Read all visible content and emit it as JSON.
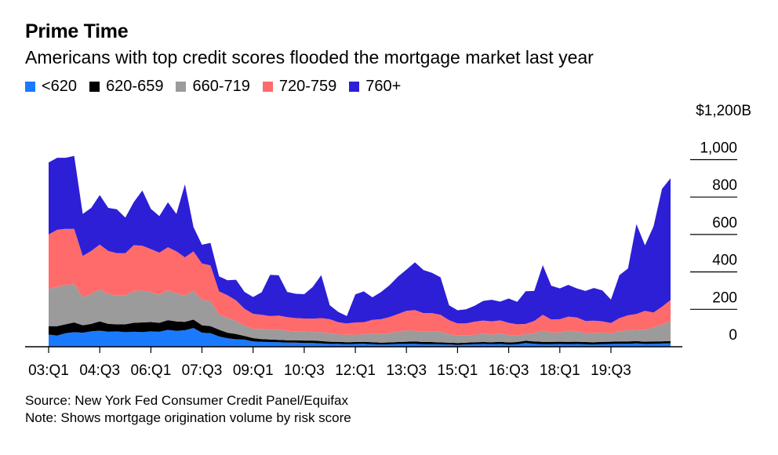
{
  "title": "Prime Time",
  "subtitle": "Americans with top credit scores flooded the mortgage market last year",
  "source": "Source: New York Fed Consumer Credit Panel/Equifax",
  "note": "Note: Shows mortgage origination volume by risk score",
  "colors": {
    "lt620": "#1a7aff",
    "620_659": "#000000",
    "660_719": "#9b9b9b",
    "720_759": "#ff6b6b",
    "760plus": "#2c1fd6"
  },
  "chart_data": {
    "type": "area",
    "stacked": true,
    "ylabel_top": "$1,200B",
    "ylim": [
      0,
      1200
    ],
    "y_ticks": [
      0,
      200,
      400,
      600,
      800,
      1000,
      1200
    ],
    "y_tick_labels": [
      "0",
      "200",
      "400",
      "600",
      "800",
      "1,000",
      "$1,200B"
    ],
    "x_tick_labels": [
      "03:Q1",
      "04:Q3",
      "06:Q1",
      "07:Q3",
      "09:Q1",
      "10:Q3",
      "12:Q1",
      "13:Q3",
      "15:Q1",
      "16:Q3",
      "18:Q1",
      "19:Q3"
    ],
    "x_tick_index": [
      0,
      6,
      12,
      18,
      24,
      30,
      36,
      42,
      48,
      54,
      60,
      66
    ],
    "legend_position": "top-left",
    "series": [
      {
        "name": "<620",
        "color": "#1a7aff",
        "values": [
          65,
          60,
          72,
          78,
          75,
          82,
          86,
          80,
          82,
          78,
          80,
          78,
          82,
          80,
          90,
          85,
          88,
          100,
          75,
          72,
          55,
          45,
          40,
          38,
          28,
          26,
          25,
          24,
          22,
          22,
          20,
          20,
          18,
          15,
          16,
          14,
          15,
          16,
          14,
          12,
          13,
          15,
          15,
          16,
          14,
          14,
          13,
          12,
          10,
          12,
          14,
          15,
          14,
          15,
          12,
          14,
          20,
          16,
          14,
          14,
          15,
          14,
          15,
          13,
          12,
          14,
          15,
          16,
          16,
          18,
          15,
          16,
          17,
          18
        ]
      },
      {
        "name": "620-659",
        "color": "#000000",
        "values": [
          45,
          50,
          48,
          52,
          40,
          40,
          50,
          42,
          38,
          42,
          48,
          52,
          50,
          48,
          52,
          50,
          45,
          45,
          40,
          38,
          36,
          30,
          28,
          20,
          18,
          15,
          14,
          13,
          13,
          13,
          13,
          13,
          12,
          12,
          10,
          10,
          10,
          10,
          10,
          10,
          10,
          10,
          12,
          12,
          11,
          11,
          10,
          10,
          10,
          10,
          10,
          10,
          10,
          11,
          11,
          11,
          12,
          12,
          12,
          12,
          12,
          12,
          12,
          12,
          12,
          12,
          12,
          12,
          12,
          12,
          12,
          12,
          12,
          12
        ]
      },
      {
        "name": "660-719",
        "color": "#9b9b9b",
        "values": [
          200,
          210,
          210,
          205,
          150,
          160,
          170,
          160,
          155,
          155,
          170,
          170,
          160,
          150,
          160,
          150,
          140,
          155,
          135,
          135,
          80,
          80,
          70,
          55,
          50,
          55,
          50,
          55,
          50,
          48,
          48,
          45,
          48,
          45,
          40,
          40,
          40,
          40,
          45,
          45,
          50,
          55,
          60,
          58,
          55,
          55,
          58,
          45,
          40,
          38,
          40,
          45,
          40,
          45,
          40,
          35,
          35,
          45,
          60,
          50,
          50,
          60,
          55,
          48,
          50,
          50,
          45,
          55,
          60,
          60,
          65,
          75,
          90,
          105
        ]
      },
      {
        "name": "720-759",
        "color": "#ff6b6b",
        "values": [
          290,
          305,
          300,
          295,
          220,
          230,
          240,
          230,
          225,
          225,
          245,
          240,
          230,
          225,
          230,
          225,
          205,
          210,
          195,
          190,
          125,
          120,
          110,
          90,
          80,
          75,
          75,
          75,
          73,
          70,
          70,
          72,
          75,
          75,
          65,
          60,
          65,
          65,
          75,
          80,
          85,
          95,
          105,
          110,
          100,
          100,
          90,
          75,
          65,
          65,
          70,
          70,
          72,
          70,
          65,
          60,
          55,
          65,
          85,
          70,
          70,
          75,
          75,
          65,
          65,
          60,
          55,
          70,
          80,
          85,
          100,
          80,
          95,
          115
        ]
      },
      {
        "name": "760+",
        "color": "#2c1fd6",
        "values": [
          385,
          385,
          380,
          390,
          225,
          230,
          265,
          230,
          235,
          190,
          230,
          295,
          215,
          195,
          240,
          200,
          390,
          130,
          100,
          120,
          80,
          80,
          110,
          90,
          90,
          120,
          220,
          215,
          135,
          130,
          130,
          170,
          230,
          75,
          55,
          40,
          150,
          165,
          120,
          145,
          170,
          200,
          220,
          255,
          230,
          215,
          200,
          80,
          70,
          75,
          85,
          105,
          115,
          100,
          130,
          120,
          175,
          160,
          265,
          180,
          165,
          170,
          155,
          160,
          175,
          165,
          125,
          230,
          250,
          480,
          350,
          460,
          630,
          650
        ]
      }
    ]
  }
}
